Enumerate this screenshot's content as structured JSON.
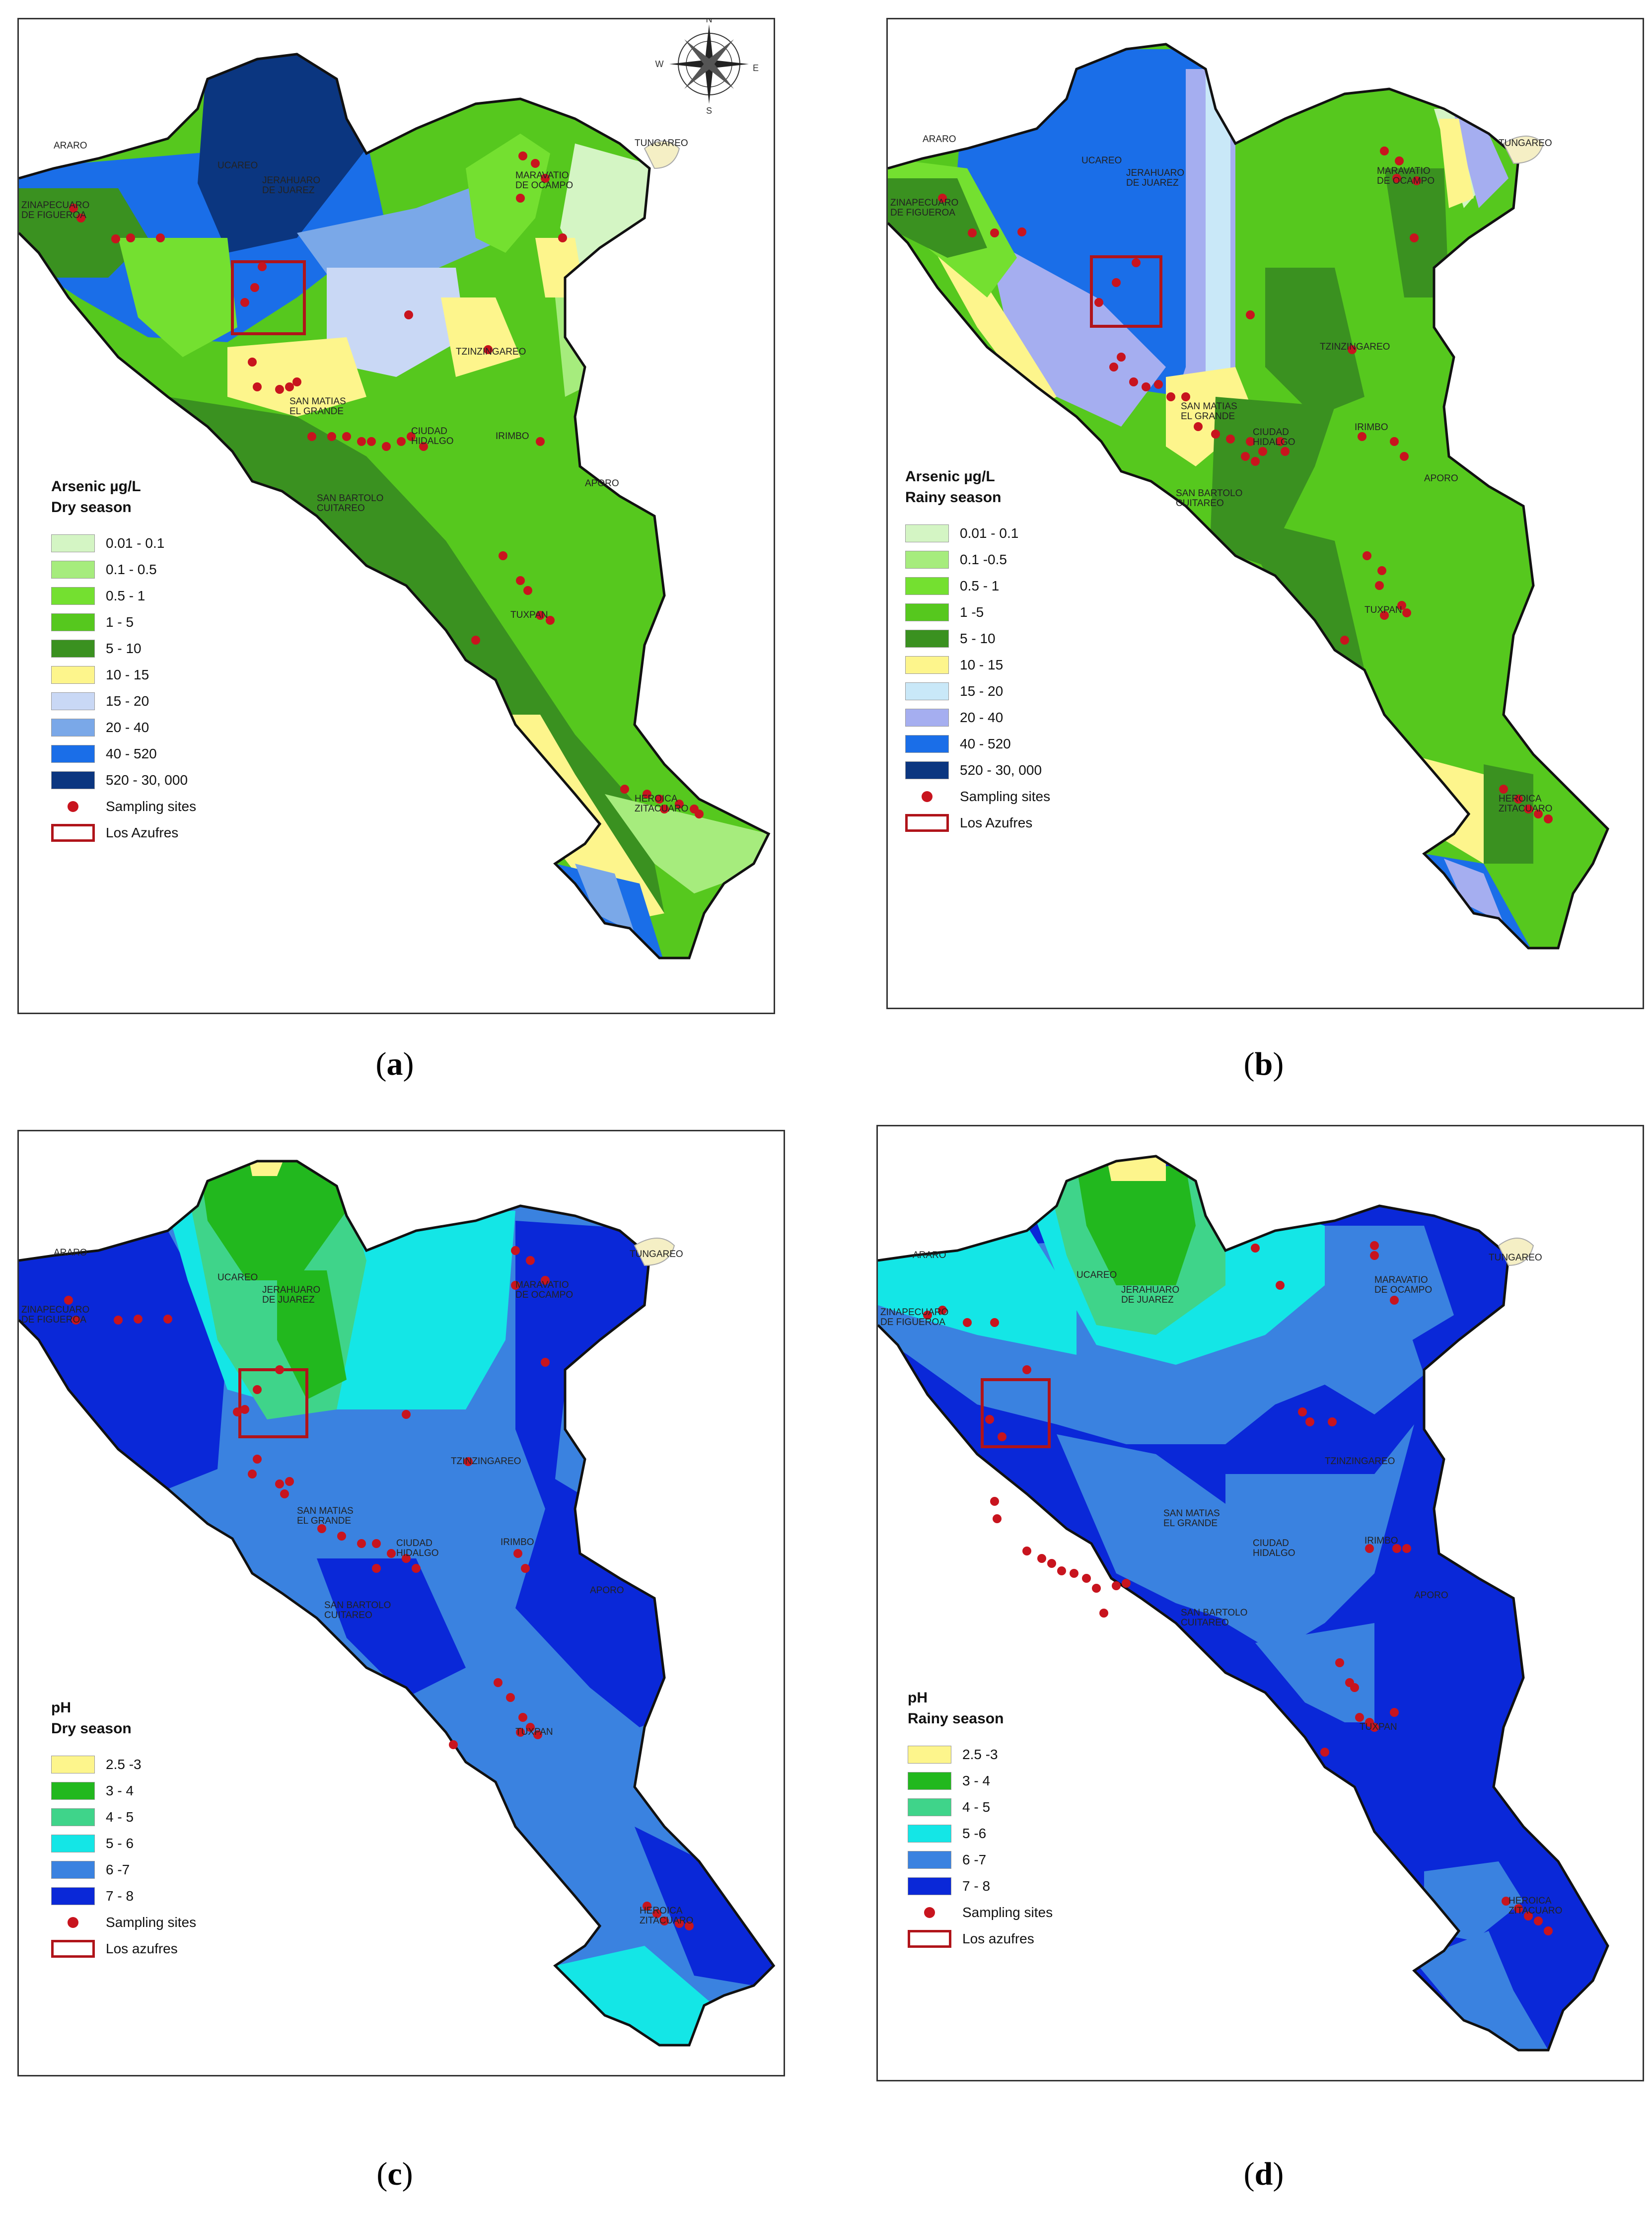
{
  "panels": [
    {
      "id": "a",
      "caption_letter": "a",
      "legend_title_line1": "Arsenic µg/L",
      "legend_title_line2": "Dry season",
      "legend": [
        {
          "label": "0.01 - 0.1",
          "color": "#d4f5c4"
        },
        {
          "label": "0.1 - 0.5",
          "color": "#a6ec7d"
        },
        {
          "label": "0.5 - 1",
          "color": "#74e030"
        },
        {
          "label": "1 - 5",
          "color": "#56c81e"
        },
        {
          "label": "5 - 10",
          "color": "#3a9120"
        },
        {
          "label": "10 - 15",
          "color": "#fdf58c"
        },
        {
          "label": "15 - 20",
          "color": "#c9d8f5"
        },
        {
          "label": "20 - 40",
          "color": "#7aa8e8"
        },
        {
          "label": "40 - 520",
          "color": "#1a6ee8"
        },
        {
          "label": "520 - 30, 000",
          "color": "#0b3680"
        }
      ],
      "sampling_label": "Sampling sites",
      "box_label": "Los Azufres"
    },
    {
      "id": "b",
      "caption_letter": "b",
      "legend_title_line1": "Arsenic µg/L",
      "legend_title_line2": "Rainy season",
      "legend": [
        {
          "label": "0.01 - 0.1",
          "color": "#d4f5c4"
        },
        {
          "label": "0.1 -0.5",
          "color": "#a6ec7d"
        },
        {
          "label": "0.5 - 1",
          "color": "#74e030"
        },
        {
          "label": "1 -5",
          "color": "#56c81e"
        },
        {
          "label": "5 - 10",
          "color": "#3a9120"
        },
        {
          "label": "10 - 15",
          "color": "#fdf58c"
        },
        {
          "label": "15 - 20",
          "color": "#c9e8f8"
        },
        {
          "label": "20 - 40",
          "color": "#a5aef0"
        },
        {
          "label": "40 - 520",
          "color": "#1a6ee8"
        },
        {
          "label": "520 - 30, 000",
          "color": "#0b3680"
        }
      ],
      "sampling_label": "Sampling sites",
      "box_label": "Los Azufres"
    },
    {
      "id": "c",
      "caption_letter": "c",
      "legend_title_line1": "pH",
      "legend_title_line2": "Dry season",
      "legend": [
        {
          "label": "2.5 -3",
          "color": "#fdf58c"
        },
        {
          "label": "3 - 4",
          "color": "#22b81e"
        },
        {
          "label": "4 - 5",
          "color": "#3fd48a"
        },
        {
          "label": "5 - 6",
          "color": "#14e6e6"
        },
        {
          "label": "6 -7",
          "color": "#3a82e0"
        },
        {
          "label": "7 - 8",
          "color": "#0a28d8"
        }
      ],
      "sampling_label": "Sampling sites",
      "box_label": "Los azufres"
    },
    {
      "id": "d",
      "caption_letter": "d",
      "legend_title_line1": "pH",
      "legend_title_line2": "Rainy season",
      "legend": [
        {
          "label": "2.5 -3",
          "color": "#fdf58c"
        },
        {
          "label": "3 - 4",
          "color": "#22b81e"
        },
        {
          "label": "4 - 5",
          "color": "#3fd48a"
        },
        {
          "label": "5 -6",
          "color": "#14e6e6"
        },
        {
          "label": "6 -7",
          "color": "#3a82e0"
        },
        {
          "label": "7 - 8",
          "color": "#0a28d8"
        }
      ],
      "sampling_label": "Sampling sites",
      "box_label": "Los azufres"
    }
  ],
  "place_names": {
    "araro": "ARARO",
    "ucareo": "UCAREO",
    "jerahuaro": "JERAHUARO\nDE JUAREZ",
    "zinapecuaro": "ZINAPECUARO\nDE FIGUEROA",
    "maravatio": "MARAVATIO\nDE OCAMPO",
    "tungareo": "TUNGAREO",
    "tzinzingareo": "TZINZINGAREO",
    "san_matias": "SAN MATIAS\nEL GRANDE",
    "ciudad_hidalgo": "CIUDAD\nHIDALGO",
    "irimbo": "IRIMBO",
    "aporo": "APORO",
    "san_bartolo": "SAN BARTOLO\nCUITAREO",
    "tuxpan": "TUXPAN",
    "heroica": "HEROICA\nZITACUARO"
  },
  "compass": {
    "n": "N",
    "s": "S",
    "e": "E",
    "w": "W"
  },
  "colors": {
    "sampling_dot": "#c8141e",
    "box": "#b0141a",
    "outline": "#111111"
  }
}
